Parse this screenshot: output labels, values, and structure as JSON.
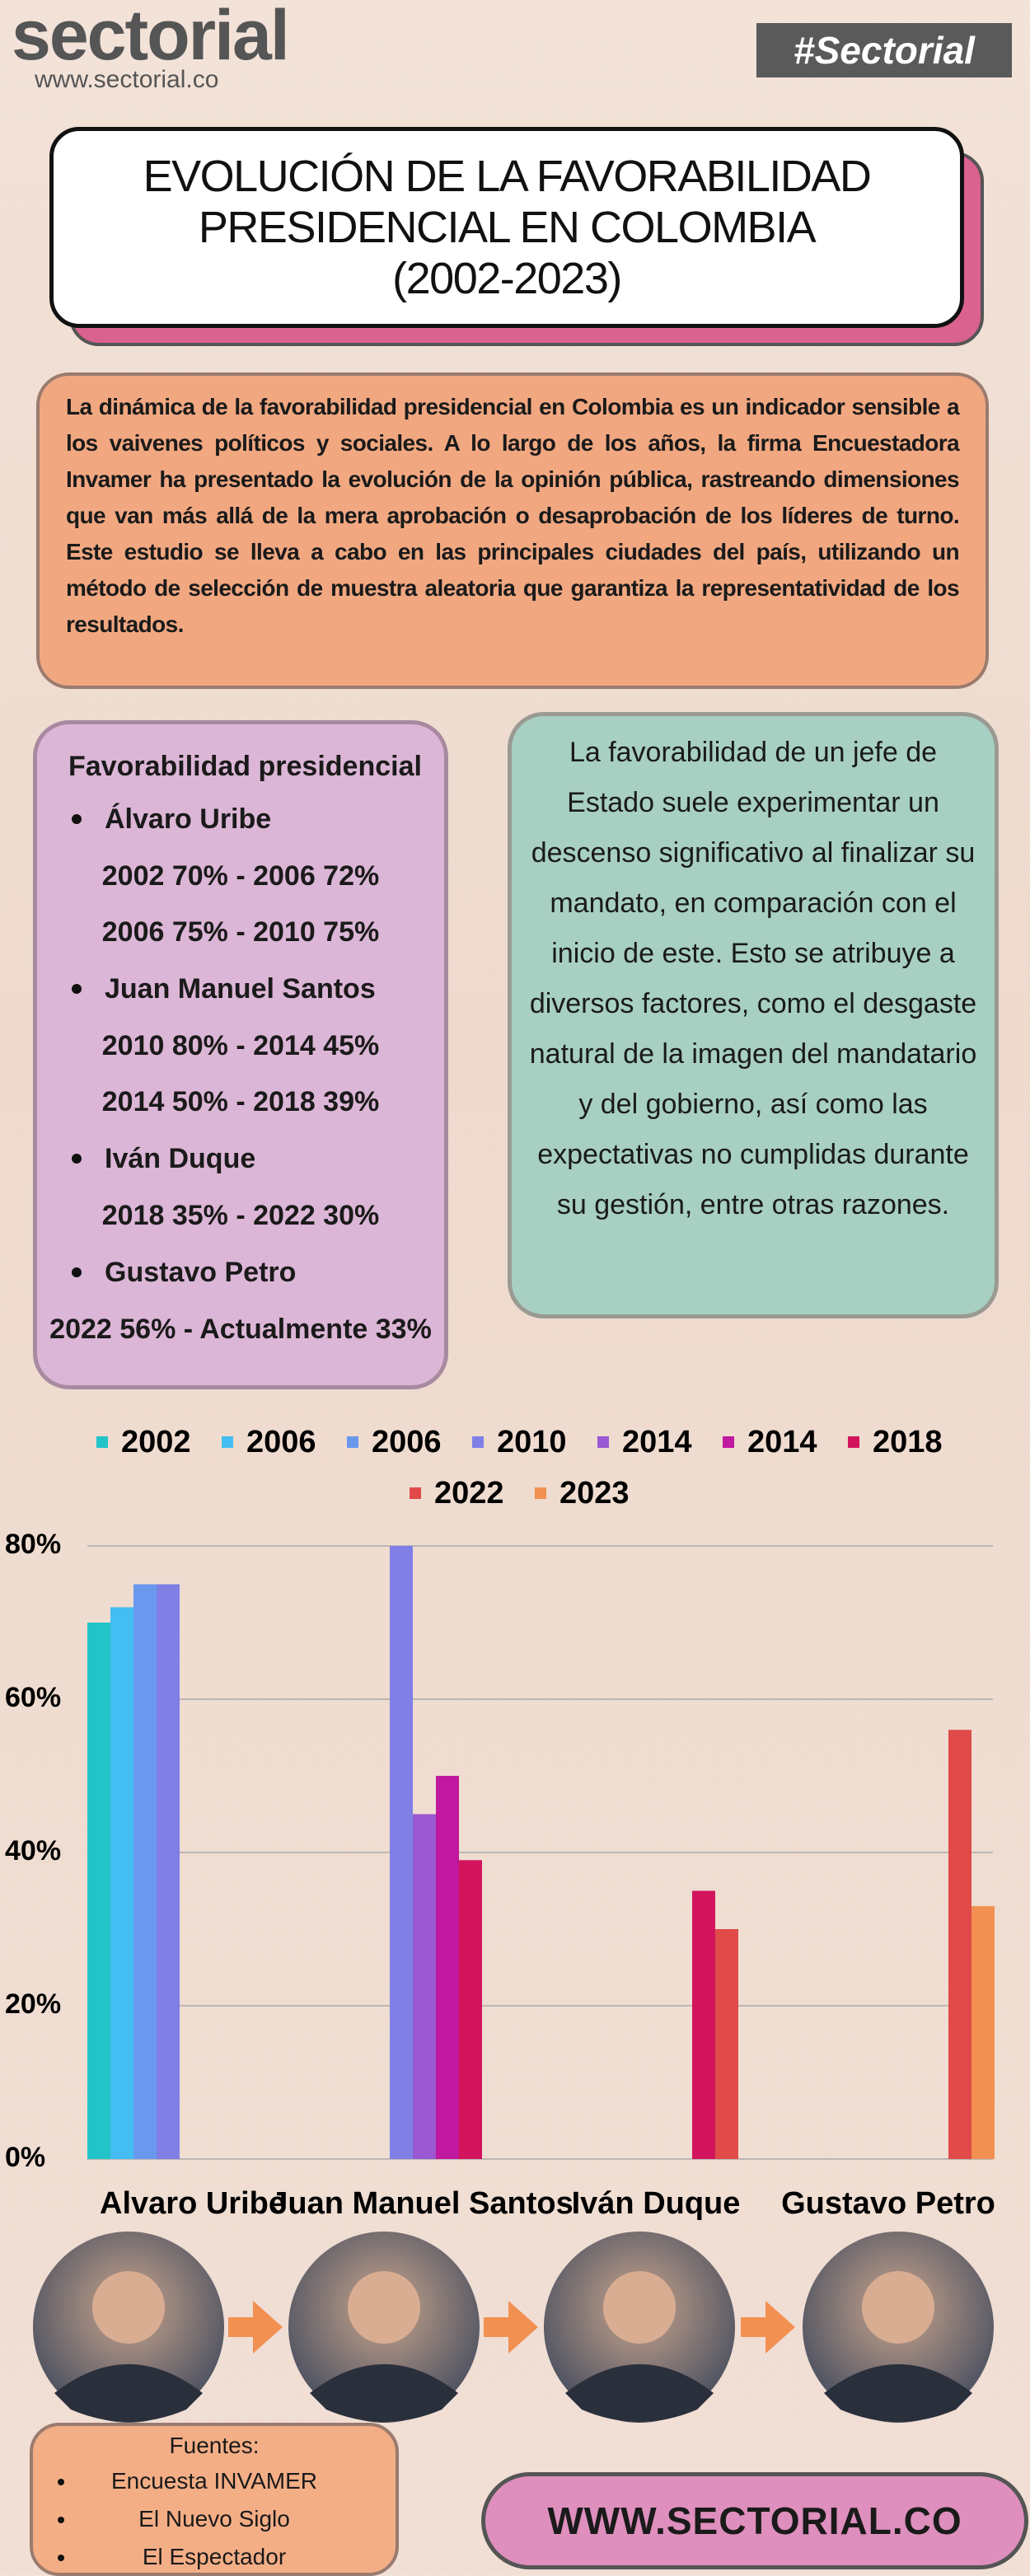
{
  "header": {
    "logo": "sectorial",
    "url": "www.sectorial.co",
    "hashtag": "#Sectorial"
  },
  "title_lines": [
    "EVOLUCIÓN DE LA FAVORABILIDAD",
    "PRESIDENCIAL EN COLOMBIA",
    "(2002-2023)"
  ],
  "intro": "La dinámica de la favorabilidad presidencial en Colombia es un indicador sensible a los vaivenes políticos y sociales. A lo largo de los años, la firma Encuestadora Invamer ha presentado la evolución de la opinión pública, rastreando dimensiones que van más allá de la mera aprobación o desaprobación de los líderes de turno. Este estudio se lleva a cabo en las principales ciudades del país, utilizando un método de selección de muestra aleatoria que garantiza la representatividad de los resultados.",
  "favorability": {
    "title": "Favorabilidad presidencial",
    "presidents": [
      {
        "name": "Álvaro Uribe",
        "lines": [
          "2002 70% - 2006 72%",
          "2006 75% - 2010 75%"
        ]
      },
      {
        "name": "Juan Manuel Santos",
        "lines": [
          "2010 80% - 2014 45%",
          "2014 50% - 2018 39%"
        ]
      },
      {
        "name": "Iván Duque",
        "lines": [
          "2018 35% - 2022 30%"
        ]
      },
      {
        "name": "Gustavo Petro",
        "lines": [
          "2022 56% - Actualmente 33%"
        ]
      }
    ]
  },
  "quote": "La favorabilidad de un jefe de Estado suele experimentar un descenso significativo al finalizar su mandato, en comparación con el inicio de este. Esto se atribuye a diversos factores, como el desgaste natural de la imagen del mandatario y del gobierno, así como las expectativas no cumplidas durante su gestión, entre otras razones.",
  "chart_data": {
    "type": "bar",
    "categories": [
      "Alvaro Uribe",
      "Juan Manuel Santos",
      "Iván Duque",
      "Gustavo Petro"
    ],
    "series": [
      {
        "name": "2002",
        "color": "#22c4c8",
        "values": [
          70,
          null,
          null,
          null
        ]
      },
      {
        "name": "2006",
        "color": "#44bdf2",
        "values": [
          72,
          null,
          null,
          null
        ]
      },
      {
        "name": "2006",
        "color": "#6a98ee",
        "values": [
          75,
          null,
          null,
          null
        ]
      },
      {
        "name": "2010",
        "color": "#7f7fe6",
        "values": [
          75,
          80,
          null,
          null
        ]
      },
      {
        "name": "2014",
        "color": "#9a58d2",
        "values": [
          null,
          45,
          null,
          null
        ]
      },
      {
        "name": "2014",
        "color": "#c0189e",
        "values": [
          null,
          50,
          null,
          null
        ]
      },
      {
        "name": "2018",
        "color": "#d2145c",
        "values": [
          null,
          39,
          35,
          null
        ]
      },
      {
        "name": "2022",
        "color": "#e04a48",
        "values": [
          null,
          null,
          30,
          56
        ]
      },
      {
        "name": "2023",
        "color": "#f29052",
        "values": [
          null,
          null,
          null,
          33
        ]
      }
    ],
    "ylim": [
      0,
      80
    ],
    "yticks": [
      {
        "value": 0,
        "label": "0%"
      },
      {
        "value": 20,
        "label": "20%"
      },
      {
        "value": 40,
        "label": "40%"
      },
      {
        "value": 60,
        "label": "60%"
      },
      {
        "value": 80,
        "label": "80%"
      }
    ],
    "grid": true,
    "legend": "top"
  },
  "sources": {
    "title": "Fuentes:",
    "items": [
      "Encuesta INVAMER",
      "El Nuevo Siglo",
      "El Espectador"
    ]
  },
  "footer_url": "WWW.SECTORIAL.CO"
}
